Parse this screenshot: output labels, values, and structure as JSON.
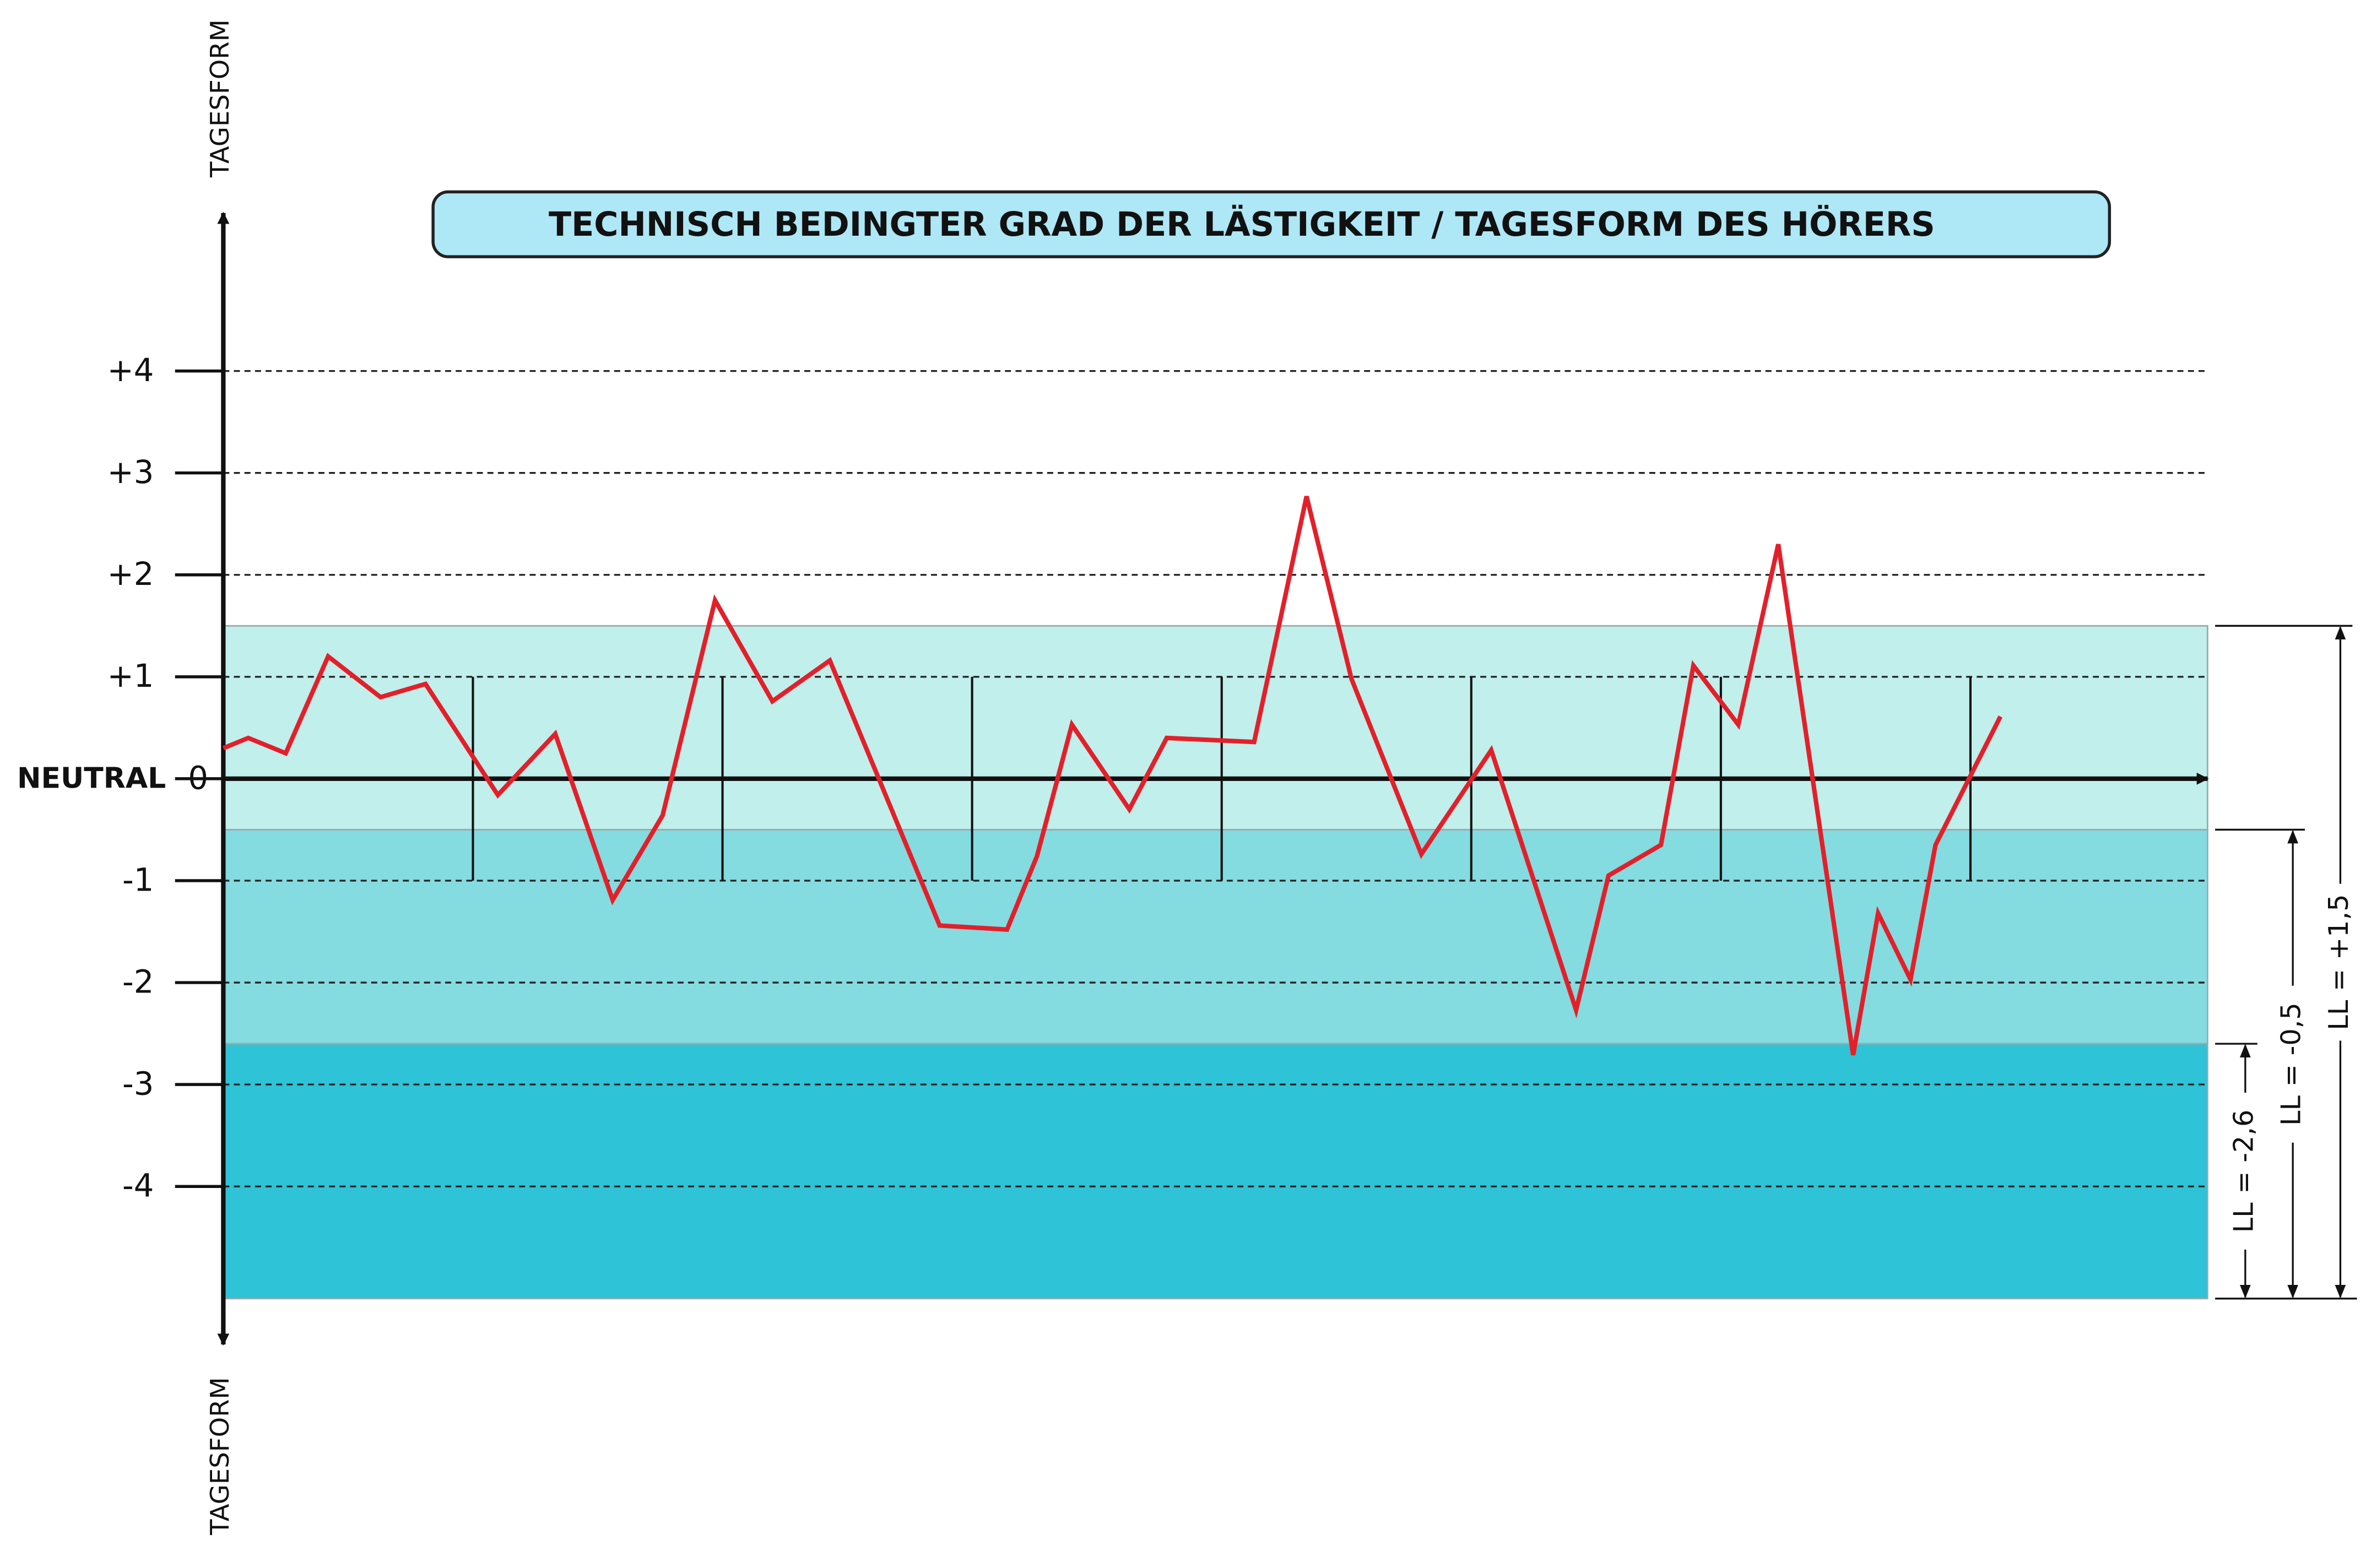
{
  "chart_data": {
    "type": "line",
    "title": "TECHNISCH BEDINGTER GRAD DER LÄSTIGKEIT / TAGESFORM  DES  HÖRERS",
    "y_label_top": "TAGESFORM",
    "y_label_bottom": "TAGESFORM",
    "zero_label": "NEUTRAL",
    "color": "#e3202a",
    "x": [
      0,
      0.1,
      0.25,
      0.42,
      0.63,
      0.81,
      1.1,
      1.33,
      1.56,
      1.76,
      1.97,
      2.2,
      2.43,
      2.87,
      3.14,
      3.26,
      3.4,
      3.63,
      3.78,
      4.13,
      4.34,
      4.52,
      4.8,
      5.08,
      5.42,
      5.55,
      5.76,
      5.89,
      6.07,
      6.23,
      6.53,
      6.63,
      6.76,
      6.86,
      7.12
    ],
    "values": [
      0.3,
      0.4,
      0.25,
      1.2,
      0.8,
      0.93,
      -0.16,
      0.44,
      -1.19,
      -0.36,
      1.75,
      0.76,
      1.16,
      -1.44,
      -1.48,
      -0.76,
      0.53,
      -0.3,
      0.4,
      0.36,
      2.77,
      0.98,
      -0.74,
      0.28,
      -2.27,
      -0.95,
      -0.65,
      1.11,
      0.53,
      2.3,
      -2.71,
      -1.32,
      -1.97,
      -0.65,
      0.61
    ],
    "xlim": [
      0,
      7.95
    ],
    "xticks": [
      1,
      2,
      3,
      4,
      5,
      6,
      7
    ],
    "ylim": [
      -5.55,
      5.55
    ],
    "yticks": [
      {
        "value": 4,
        "label": "+4"
      },
      {
        "value": 3,
        "label": "+3"
      },
      {
        "value": 2,
        "label": "+2"
      },
      {
        "value": 1,
        "label": "+1"
      },
      0,
      -1,
      -2,
      -3,
      -4
    ],
    "grid": true,
    "bands": [
      {
        "value": 1.5,
        "label": "LL = +1,5",
        "color": "#c0efec"
      },
      {
        "value": -0.5,
        "label": "LL = -0,5",
        "color": "#84dbe0"
      },
      {
        "value": -2.6,
        "label": "LL = -2,6",
        "color": "#2ec3d6"
      }
    ],
    "band_bottom": -5.1
  }
}
